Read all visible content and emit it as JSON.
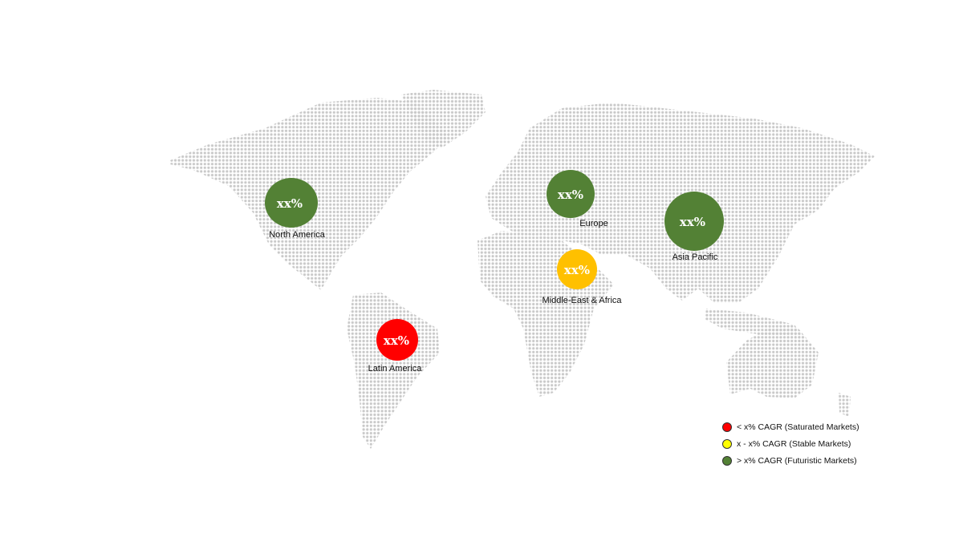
{
  "colors": {
    "green": "#538135",
    "yellow": "#ffc000",
    "red": "#ff0000",
    "land_dots": "#c9c9c9",
    "legend_yellow": "#ffff00"
  },
  "regions": [
    {
      "name": "North America",
      "value": "xx%",
      "category": "futuristic"
    },
    {
      "name": "Europe",
      "value": "xx%",
      "category": "futuristic"
    },
    {
      "name": "Asia Pacific",
      "value": "xx%",
      "category": "futuristic"
    },
    {
      "name": "Middle-East & Africa",
      "value": "xx%",
      "category": "stable"
    },
    {
      "name": "Latin America",
      "value": "xx%",
      "category": "saturated"
    }
  ],
  "legend": [
    {
      "label": "< x% CAGR (Saturated Markets)",
      "color": "#ff0000"
    },
    {
      "label": "x - x% CAGR (Stable Markets)",
      "color": "#ffff00"
    },
    {
      "label": "> x% CAGR (Futuristic Markets)",
      "color": "#538135"
    }
  ]
}
